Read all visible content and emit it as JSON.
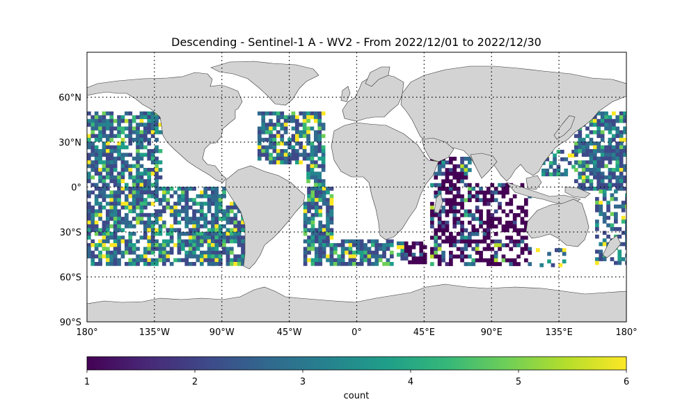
{
  "title": "Descending - Sentinel-1 A - WV2 - From 2022/12/01 to 2022/12/30",
  "map": {
    "lon_range": [
      -180,
      180
    ],
    "lat_range": [
      -90,
      90
    ],
    "gridlines": "dotted",
    "land_color": "#d3d3d3",
    "lat_tick_labels": [
      "60°N",
      "30°N",
      "0°",
      "30°S",
      "60°S",
      "90°S"
    ],
    "lat_tick_values": [
      60,
      30,
      0,
      -30,
      -60,
      -90
    ],
    "lon_tick_labels": [
      "180°",
      "135°W",
      "90°W",
      "45°W",
      "0°",
      "45°E",
      "90°E",
      "135°E",
      "180°"
    ],
    "lon_tick_values": [
      -180,
      -135,
      -90,
      -45,
      0,
      45,
      90,
      135,
      180
    ],
    "data_lat_range": [
      -50,
      50
    ]
  },
  "colorbar": {
    "label": "count",
    "colormap": "viridis",
    "ticks": [
      "1",
      "2",
      "3",
      "4",
      "5",
      "6"
    ],
    "range": [
      1,
      6
    ],
    "colors": [
      "#440154",
      "#482878",
      "#3e4989",
      "#31688e",
      "#26828e",
      "#1f9e89",
      "#35b779",
      "#6ece58",
      "#b5de2b",
      "#fde725"
    ]
  }
}
